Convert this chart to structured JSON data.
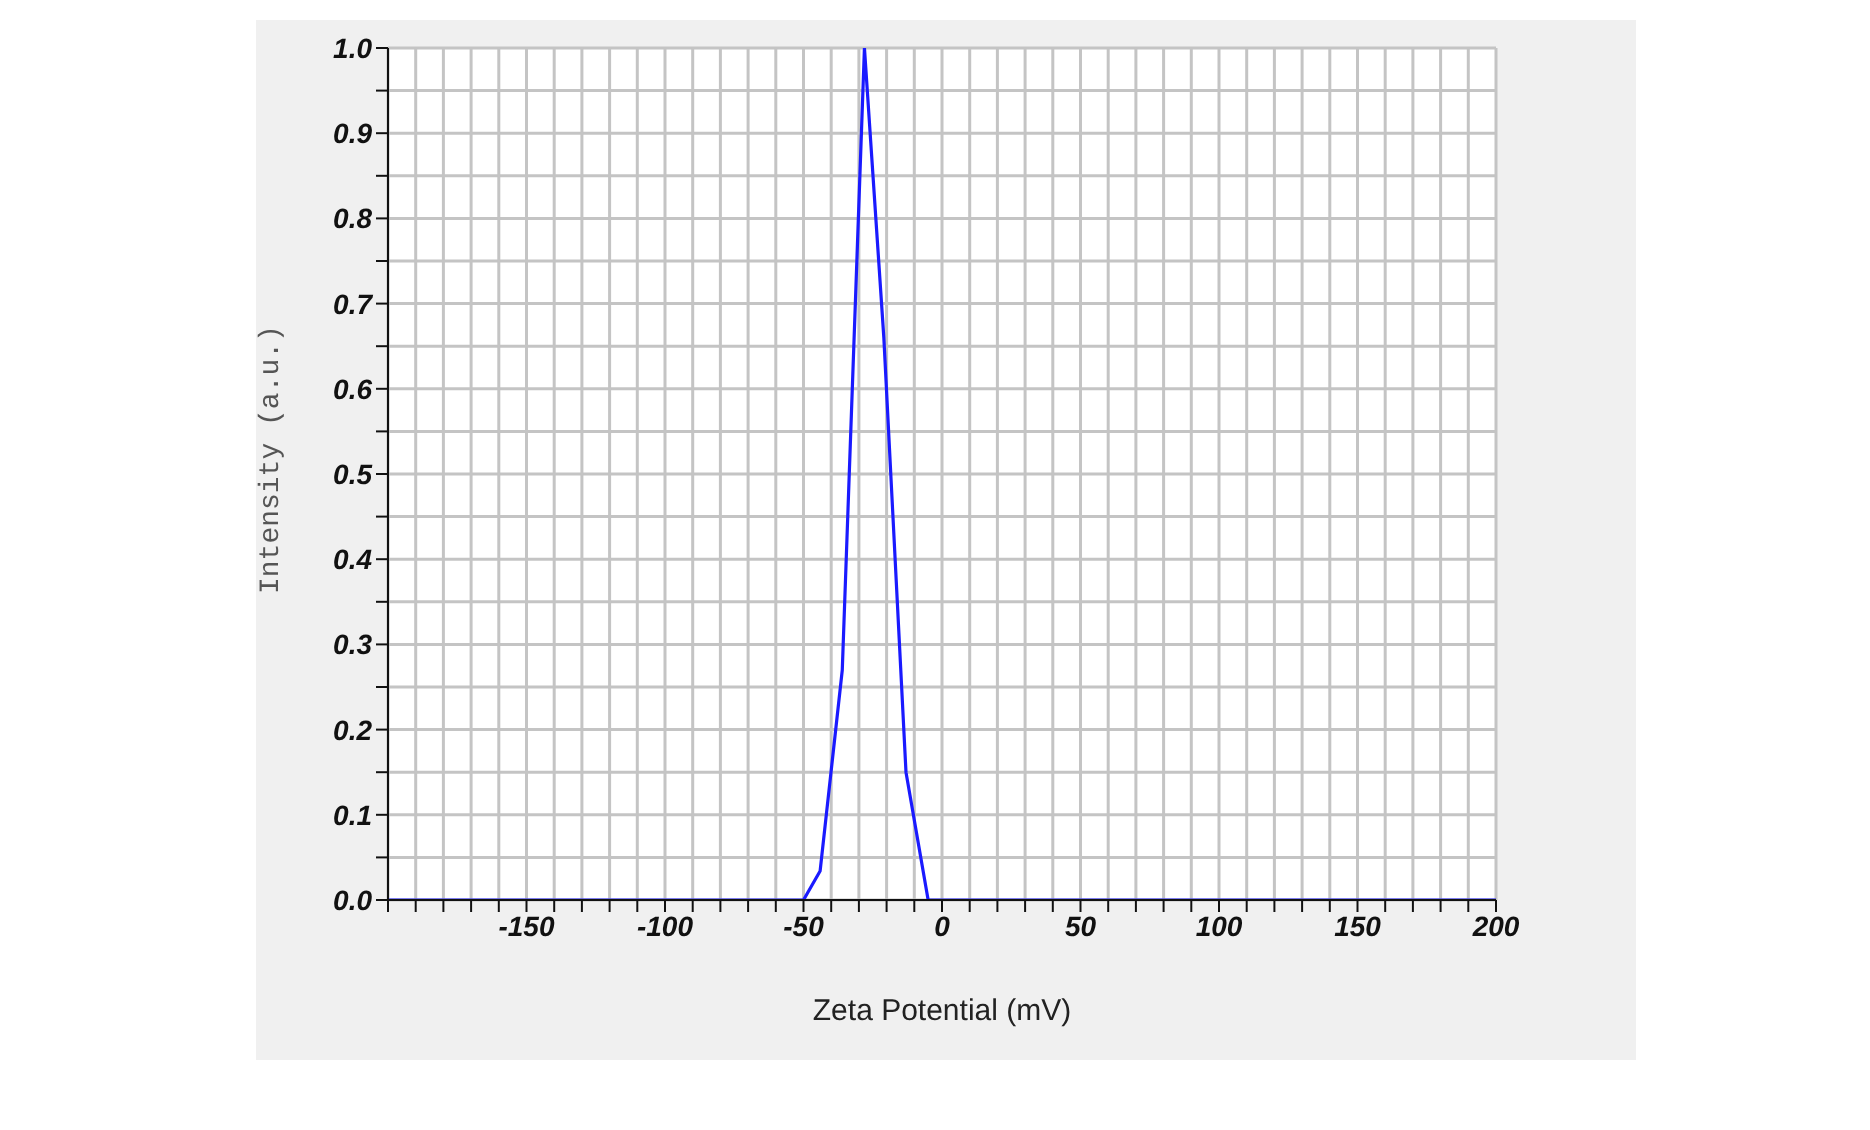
{
  "chart_data": {
    "type": "line",
    "xlabel": "Zeta Potential (mV)",
    "ylabel": "Intensity (a.u.)",
    "x": [
      -200,
      -50,
      -44,
      -36,
      -28,
      -21,
      -13,
      -5,
      200
    ],
    "series": [
      {
        "color": "#1a1aff",
        "values": [
          0,
          0,
          0.034,
          0.27,
          1.0,
          0.66,
          0.15,
          0,
          0
        ]
      }
    ],
    "xlim": [
      -200,
      200
    ],
    "xticks": [
      {
        "value": -200,
        "label": null
      },
      {
        "value": -190,
        "label": null
      },
      {
        "value": -180,
        "label": null
      },
      {
        "value": -170,
        "label": null
      },
      {
        "value": -160,
        "label": null
      },
      -150,
      {
        "value": -140,
        "label": null
      },
      {
        "value": -130,
        "label": null
      },
      {
        "value": -120,
        "label": null
      },
      {
        "value": -110,
        "label": null
      },
      -100,
      {
        "value": -90,
        "label": null
      },
      {
        "value": -80,
        "label": null
      },
      {
        "value": -70,
        "label": null
      },
      {
        "value": -60,
        "label": null
      },
      -50,
      {
        "value": -40,
        "label": null
      },
      {
        "value": -30,
        "label": null
      },
      {
        "value": -20,
        "label": null
      },
      {
        "value": -10,
        "label": null
      },
      0,
      {
        "value": 10,
        "label": null
      },
      {
        "value": 20,
        "label": null
      },
      {
        "value": 30,
        "label": null
      },
      {
        "value": 40,
        "label": null
      },
      50,
      {
        "value": 60,
        "label": null
      },
      {
        "value": 70,
        "label": null
      },
      {
        "value": 80,
        "label": null
      },
      {
        "value": 90,
        "label": null
      },
      100,
      {
        "value": 110,
        "label": null
      },
      {
        "value": 120,
        "label": null
      },
      {
        "value": 130,
        "label": null
      },
      {
        "value": 140,
        "label": null
      },
      150,
      {
        "value": 160,
        "label": null
      },
      {
        "value": 170,
        "label": null
      },
      {
        "value": 180,
        "label": null
      },
      {
        "value": 190,
        "label": null
      },
      200
    ],
    "ylim": [
      0,
      1
    ],
    "yticks": [
      {
        "value": 0,
        "label": "0.0"
      },
      {
        "value": 0.05,
        "label": null
      },
      {
        "value": 0.1,
        "label": "0.1"
      },
      {
        "value": 0.15,
        "label": null
      },
      {
        "value": 0.2,
        "label": "0.2"
      },
      {
        "value": 0.25,
        "label": null
      },
      {
        "value": 0.3,
        "label": "0.3"
      },
      {
        "value": 0.35,
        "label": null
      },
      {
        "value": 0.4,
        "label": "0.4"
      },
      {
        "value": 0.45,
        "label": null
      },
      {
        "value": 0.5,
        "label": "0.5"
      },
      {
        "value": 0.55,
        "label": null
      },
      {
        "value": 0.6,
        "label": "0.6"
      },
      {
        "value": 0.65,
        "label": null
      },
      {
        "value": 0.7,
        "label": "0.7"
      },
      {
        "value": 0.75,
        "label": null
      },
      {
        "value": 0.8,
        "label": "0.8"
      },
      {
        "value": 0.85,
        "label": null
      },
      {
        "value": 0.9,
        "label": "0.9"
      },
      {
        "value": 0.95,
        "label": null
      },
      {
        "value": 1,
        "label": "1.0"
      }
    ],
    "grid": true,
    "marker": "none",
    "line_style": "solid"
  }
}
